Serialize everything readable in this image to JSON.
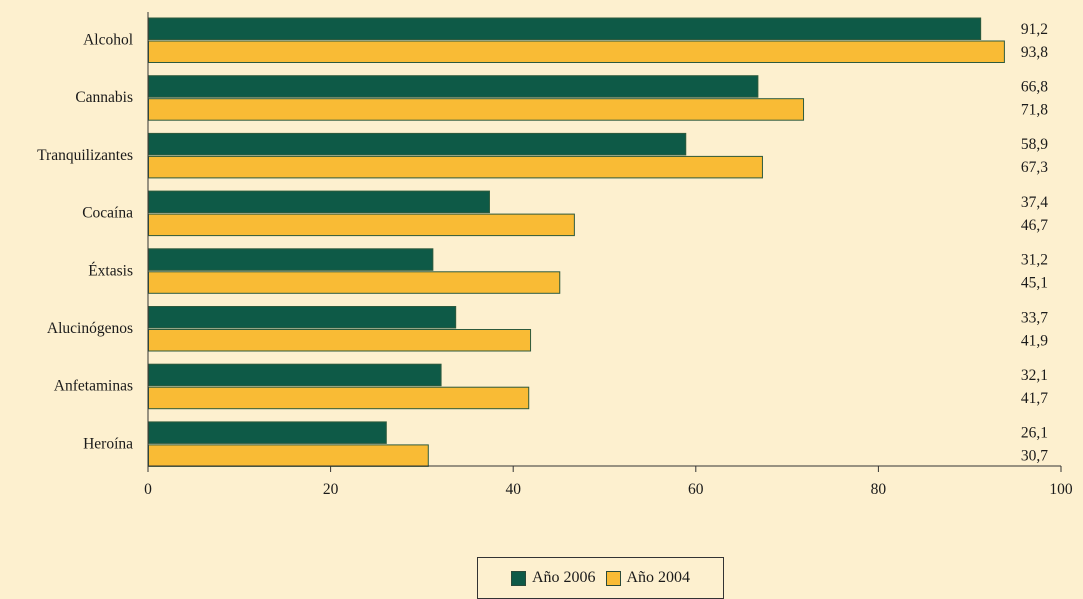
{
  "chart_data": {
    "type": "bar",
    "orientation": "horizontal",
    "categories": [
      "Alcohol",
      "Cannabis",
      "Tranquilizantes",
      "Cocaína",
      "Éxtasis",
      "Alucinógenos",
      "Anfetaminas",
      "Heroína"
    ],
    "series": [
      {
        "name": "Año 2006",
        "color": "#0e5a47",
        "values": [
          91.2,
          66.8,
          58.9,
          37.4,
          31.2,
          33.7,
          32.1,
          26.1
        ],
        "labels": [
          "91,2",
          "66,8",
          "58,9",
          "37,4",
          "31,2",
          "33,7",
          "32,1",
          "26,1"
        ]
      },
      {
        "name": "Año 2004",
        "color": "#f9bb35",
        "values": [
          93.8,
          71.8,
          67.3,
          46.7,
          45.1,
          41.9,
          41.7,
          30.7
        ],
        "labels": [
          "93,8",
          "71,8",
          "67,3",
          "46,7",
          "45,1",
          "41,9",
          "41,7",
          "30,7"
        ]
      }
    ],
    "xlim": [
      0,
      100
    ],
    "xticks": [
      0,
      20,
      40,
      60,
      80,
      100
    ],
    "grid": false,
    "legend_position": "bottom-center"
  }
}
